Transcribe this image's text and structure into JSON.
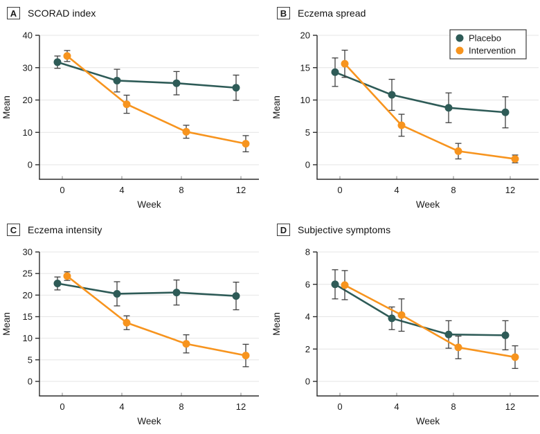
{
  "colors": {
    "placebo": "#2E5B57",
    "intervention": "#F7941E",
    "grid": "#E4E4E4",
    "axis": "#2B2B2B",
    "x_tick": "#8A8A8A",
    "error_bar": "#3F3F3F",
    "text": "#1A1A1A",
    "legend_border": "#3C3C3C",
    "background": "#FFFFFF"
  },
  "legend": {
    "position": "top-right",
    "shown_in_panel": "B",
    "items": [
      {
        "label": "Placebo",
        "color": "#2E5B57"
      },
      {
        "label": "Intervention",
        "color": "#F7941E"
      }
    ]
  },
  "chart_data": [
    {
      "type": "line",
      "panel_label": "A",
      "title": "SCORAD index",
      "xlabel": "Week",
      "ylabel": "Mean",
      "x": [
        0,
        4,
        8,
        12
      ],
      "xticks": [
        0,
        4,
        8,
        12
      ],
      "ylim": [
        0,
        40
      ],
      "yticks": [
        0,
        10,
        20,
        30,
        40
      ],
      "grid": true,
      "legend_position": null,
      "series": [
        {
          "name": "Placebo",
          "color": "#2E5B57",
          "values": [
            31.7,
            26.0,
            25.2,
            23.8
          ],
          "errors": [
            1.9,
            3.5,
            3.6,
            3.9
          ]
        },
        {
          "name": "Intervention",
          "color": "#F7941E",
          "values": [
            33.6,
            18.7,
            10.2,
            6.5
          ],
          "errors": [
            1.7,
            2.8,
            2.0,
            2.5
          ]
        }
      ]
    },
    {
      "type": "line",
      "panel_label": "B",
      "title": "Eczema spread",
      "xlabel": "Week",
      "ylabel": "Mean",
      "x": [
        0,
        4,
        8,
        12
      ],
      "xticks": [
        0,
        4,
        8,
        12
      ],
      "ylim": [
        0,
        20
      ],
      "yticks": [
        0,
        5,
        10,
        15,
        20
      ],
      "grid": true,
      "legend_position": "top-right",
      "series": [
        {
          "name": "Placebo",
          "color": "#2E5B57",
          "values": [
            14.3,
            10.8,
            8.8,
            8.1
          ],
          "errors": [
            2.2,
            2.4,
            2.3,
            2.4
          ]
        },
        {
          "name": "Intervention",
          "color": "#F7941E",
          "values": [
            15.6,
            6.1,
            2.1,
            0.9
          ],
          "errors": [
            2.1,
            1.7,
            1.2,
            0.6
          ]
        }
      ]
    },
    {
      "type": "line",
      "panel_label": "C",
      "title": "Eczema intensity",
      "xlabel": "Week",
      "ylabel": "Mean",
      "x": [
        0,
        4,
        8,
        12
      ],
      "xticks": [
        0,
        4,
        8,
        12
      ],
      "ylim": [
        0,
        30
      ],
      "yticks": [
        0,
        5,
        10,
        15,
        20,
        25,
        30
      ],
      "grid": true,
      "legend_position": null,
      "series": [
        {
          "name": "Placebo",
          "color": "#2E5B57",
          "values": [
            22.7,
            20.3,
            20.6,
            19.8
          ],
          "errors": [
            1.5,
            2.8,
            2.9,
            3.2
          ]
        },
        {
          "name": "Intervention",
          "color": "#F7941E",
          "values": [
            24.4,
            13.6,
            8.7,
            6.0
          ],
          "errors": [
            1.0,
            1.6,
            2.1,
            2.6
          ]
        }
      ]
    },
    {
      "type": "line",
      "panel_label": "D",
      "title": "Subjective symptoms",
      "xlabel": "Week",
      "ylabel": "Mean",
      "x": [
        0,
        4,
        8,
        12
      ],
      "xticks": [
        0,
        4,
        8,
        12
      ],
      "ylim": [
        0,
        8
      ],
      "yticks": [
        0,
        2,
        4,
        6,
        8
      ],
      "grid": true,
      "legend_position": null,
      "series": [
        {
          "name": "Placebo",
          "color": "#2E5B57",
          "values": [
            6.0,
            3.9,
            2.9,
            2.85
          ],
          "errors": [
            0.9,
            0.7,
            0.85,
            0.9
          ]
        },
        {
          "name": "Intervention",
          "color": "#F7941E",
          "values": [
            5.95,
            4.1,
            2.1,
            1.5
          ],
          "errors": [
            0.9,
            1.0,
            0.7,
            0.7
          ]
        }
      ]
    }
  ]
}
